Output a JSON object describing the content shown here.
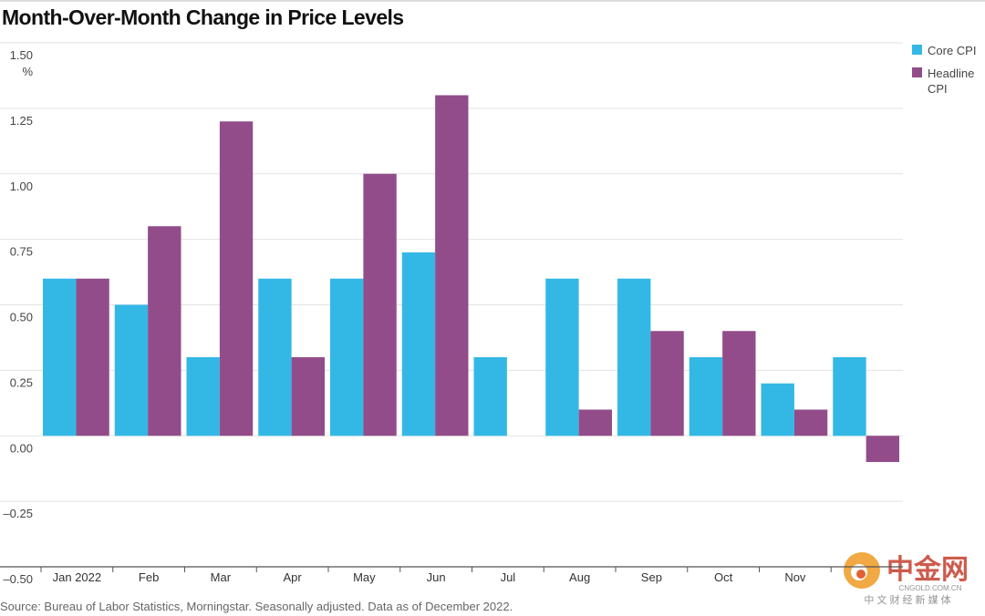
{
  "chart_data": {
    "type": "bar",
    "title": "Month-Over-Month Change in Price Levels",
    "y_unit": "%",
    "categories": [
      "Jan 2022",
      "Feb",
      "Mar",
      "Apr",
      "May",
      "Jun",
      "Jul",
      "Aug",
      "Sep",
      "Oct",
      "Nov",
      null
    ],
    "series": [
      {
        "name": "Core CPI",
        "color": "#33b8e6",
        "values": [
          0.6,
          0.5,
          0.3,
          0.6,
          0.6,
          0.7,
          0.3,
          0.6,
          0.6,
          0.3,
          0.2,
          0.3
        ]
      },
      {
        "name": "Headline CPI",
        "color": "#934c8a",
        "values": [
          0.6,
          0.8,
          1.2,
          0.3,
          1.0,
          1.3,
          0.0,
          0.1,
          0.4,
          0.4,
          0.1,
          -0.1
        ]
      }
    ],
    "ylim": [
      -0.5,
      1.5
    ],
    "yticks": [
      {
        "value": 1.5,
        "label": "1.50"
      },
      {
        "value": 1.25,
        "label": "1.25"
      },
      {
        "value": 1,
        "label": "1.00"
      },
      {
        "value": 0.75,
        "label": "0.75"
      },
      {
        "value": 0.5,
        "label": "0.50"
      },
      {
        "value": 0.25,
        "label": "0.25"
      },
      {
        "value": 0,
        "label": "0.00"
      },
      {
        "value": -0.25,
        "label": "–0.25"
      },
      {
        "value": -0.5,
        "label": "–0.50"
      }
    ],
    "grid": true,
    "legend": "top-right",
    "source": "Source: Bureau of Labor Statistics, Morningstar. Seasonally adjusted. Data as of December 2022.",
    "watermark": {
      "logo": "中金网",
      "site": "CNGOLD.COM.CN",
      "tagline": "中 文 财 经 新 媒 体"
    }
  }
}
